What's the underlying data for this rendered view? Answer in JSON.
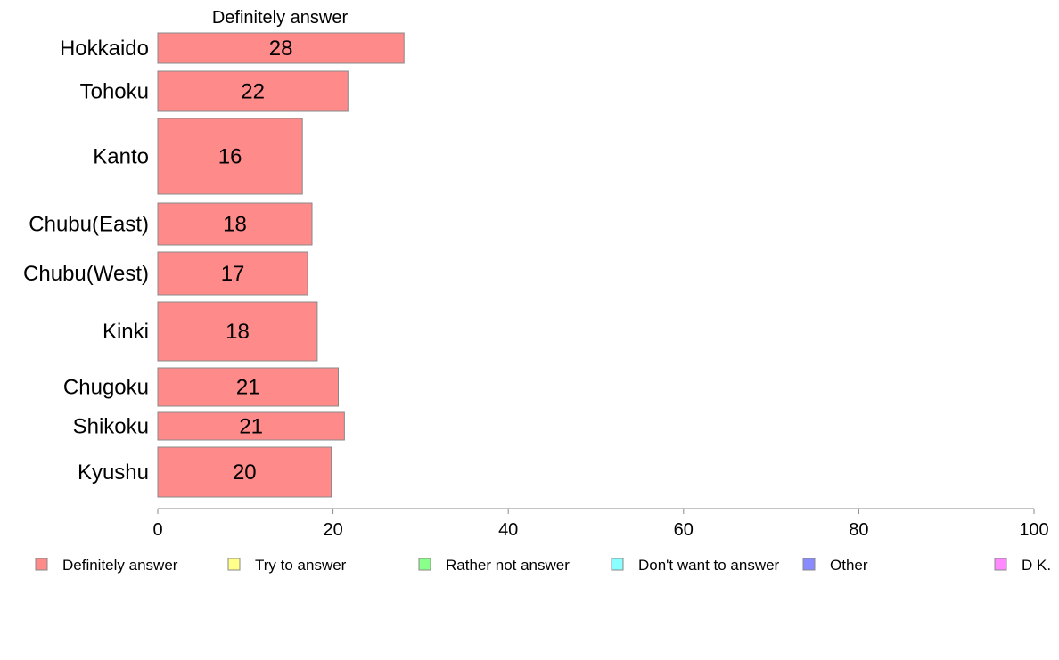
{
  "chart_data": {
    "type": "bar",
    "orientation": "horizontal",
    "stacked": true,
    "title": "Definitely answer",
    "categories": [
      "Hokkaido",
      "Tohoku",
      "Kanto",
      "Chubu(East)",
      "Chubu(West)",
      "Kinki",
      "Chugoku",
      "Shikoku",
      "Kyushu"
    ],
    "series": [
      {
        "name": "Definitely answer",
        "color": "#ff8a8a",
        "values": [
          28.1,
          21.7,
          16.5,
          17.6,
          17.1,
          18.2,
          20.6,
          21.3,
          19.8
        ],
        "labels": [
          "28",
          "22",
          "16",
          "18",
          "17",
          "18",
          "21",
          "21",
          "20"
        ]
      }
    ],
    "xlim": [
      0,
      100
    ],
    "xticks": [
      0,
      20,
      40,
      60,
      80,
      100
    ],
    "grid": false,
    "legend_position": "bottom",
    "legend": [
      {
        "label": "Definitely answer",
        "color": "#ff8a8a"
      },
      {
        "label": "Try to answer",
        "color": "#ffff8a"
      },
      {
        "label": "Rather not answer",
        "color": "#8aff8a"
      },
      {
        "label": "Don't want to answer",
        "color": "#8affff"
      },
      {
        "label": "Other",
        "color": "#8a8aff"
      },
      {
        "label": "D K.",
        "color": "#ff8aff"
      }
    ]
  }
}
